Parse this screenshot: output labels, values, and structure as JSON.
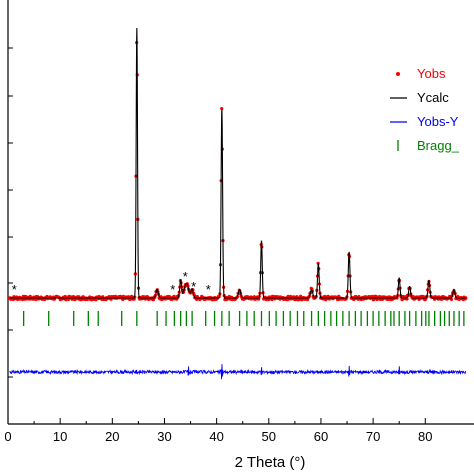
{
  "chart_data": {
    "type": "line",
    "title": "",
    "xlabel": "2 Theta (°)",
    "ylabel": "",
    "xlim": [
      0,
      88
    ],
    "x_ticks": [
      "0",
      "10",
      "20",
      "30",
      "40",
      "50",
      "60",
      "70",
      "80"
    ],
    "x_tick_values": [
      0,
      10,
      20,
      30,
      40,
      50,
      60,
      70,
      80
    ],
    "legend_position": "top-right",
    "legend": [
      {
        "label": "Yobs",
        "color": "#ff0000",
        "marker": "dot"
      },
      {
        "label": "Ycalc",
        "color": "#000000",
        "marker": "line"
      },
      {
        "label": "Yobs-Y",
        "color": "#0000ff",
        "marker": "line"
      },
      {
        "label": "Bragg_",
        "color": "#008000",
        "marker": "tick"
      }
    ],
    "baseline_intensity": 6,
    "ylim": [
      0,
      100
    ],
    "peaks": [
      {
        "x": 24.7,
        "height": 100,
        "width": 0.18
      },
      {
        "x": 28.6,
        "height": 3,
        "width": 0.3
      },
      {
        "x": 33.1,
        "height": 6,
        "width": 0.25
      },
      {
        "x": 34.2,
        "height": 5,
        "width": 0.6
      },
      {
        "x": 35.3,
        "height": 3,
        "width": 0.3
      },
      {
        "x": 41.0,
        "height": 72,
        "width": 0.2
      },
      {
        "x": 44.4,
        "height": 3,
        "width": 0.3
      },
      {
        "x": 48.6,
        "height": 26,
        "width": 0.2
      },
      {
        "x": 58.2,
        "height": 3,
        "width": 0.3
      },
      {
        "x": 59.5,
        "height": 18,
        "width": 0.22
      },
      {
        "x": 65.4,
        "height": 22,
        "width": 0.22
      },
      {
        "x": 75.0,
        "height": 13,
        "width": 0.22
      },
      {
        "x": 77.0,
        "height": 4,
        "width": 0.25
      },
      {
        "x": 80.7,
        "height": 6,
        "width": 0.25
      },
      {
        "x": 85.5,
        "height": 3,
        "width": 0.25
      }
    ],
    "impurity_marks": [
      {
        "x": 1.2,
        "label": "*"
      },
      {
        "x": 31.6,
        "label": "*"
      },
      {
        "x": 34.0,
        "label": "*"
      },
      {
        "x": 35.6,
        "label": "*"
      },
      {
        "x": 38.4,
        "label": "*"
      }
    ],
    "bragg_positions": [
      3.0,
      7.8,
      12.6,
      15.4,
      17.3,
      21.8,
      24.7,
      28.6,
      30.3,
      31.9,
      33.1,
      34.2,
      35.3,
      37.9,
      39.6,
      41.0,
      42.4,
      44.4,
      45.8,
      47.2,
      48.6,
      50.1,
      51.4,
      52.8,
      54.1,
      55.5,
      56.7,
      58.2,
      59.5,
      60.7,
      61.9,
      63.0,
      64.2,
      65.4,
      66.6,
      67.7,
      68.9,
      70.0,
      71.1,
      72.3,
      73.4,
      74.0,
      75.0,
      76.1,
      77.0,
      78.2,
      79.3,
      80.1,
      80.7,
      81.8,
      82.9,
      83.7,
      84.6,
      85.5,
      86.5,
      87.4
    ],
    "difference_spikes": [
      {
        "x": 24.7,
        "amplitude": 10
      },
      {
        "x": 33.1,
        "amplitude": 3
      },
      {
        "x": 34.6,
        "amplitude": 3
      },
      {
        "x": 41.0,
        "amplitude": 6
      },
      {
        "x": 48.6,
        "amplitude": 4
      },
      {
        "x": 59.5,
        "amplitude": 3
      },
      {
        "x": 65.4,
        "amplitude": 3
      },
      {
        "x": 75.0,
        "amplitude": 3
      }
    ],
    "colors": {
      "yobs": "#ff0000",
      "ycalc": "#000000",
      "difference": "#0000ff",
      "bragg": "#008000"
    }
  }
}
